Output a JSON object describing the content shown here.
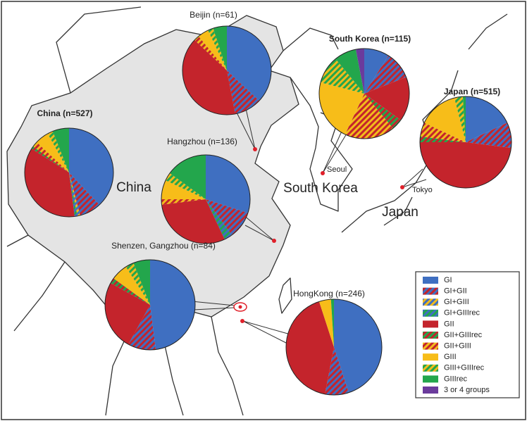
{
  "map": {
    "countries": [
      "China",
      "South Korea",
      "Japan"
    ],
    "cities": [
      "Seoul",
      "Tokyo"
    ]
  },
  "legend": {
    "categories": [
      "GI",
      "GI+GII",
      "GI+GIII",
      "GI+GIIIrec",
      "GII",
      "GII+GIIIrec",
      "GII+GIII",
      "GIII",
      "GIII+GIIIrec",
      "GIIIrec",
      "3 or 4 groups"
    ],
    "colors": [
      "#3f6fc1",
      [
        "#3f6fc1",
        "#c4242c"
      ],
      [
        "#3f6fc1",
        "#f2bb1c"
      ],
      [
        "#3f6fc1",
        "#23a64c"
      ],
      "#c4242c",
      [
        "#c4242c",
        "#23a64c"
      ],
      [
        "#c4242c",
        "#f2bb1c"
      ],
      "#f7bd19",
      [
        "#f2bb1c",
        "#23a64c"
      ],
      "#23a64c",
      "#6b3b9c"
    ]
  },
  "chart_data": [
    {
      "type": "pie",
      "title": "Beijin (n=61)",
      "values": [
        37,
        10,
        0,
        0,
        40,
        0,
        2,
        4,
        2,
        5,
        0
      ]
    },
    {
      "type": "pie",
      "title": "South Korea (n=115)",
      "values": [
        9,
        10,
        0,
        0,
        16,
        4,
        18,
        22,
        10,
        8,
        3
      ]
    },
    {
      "type": "pie",
      "title": "Japan  (n=515)",
      "values": [
        18,
        9,
        0,
        0,
        48,
        2,
        5,
        14,
        3,
        1,
        0
      ]
    },
    {
      "type": "pie",
      "title": "China (n=527)",
      "values": [
        38,
        8,
        1,
        1,
        36,
        1,
        2,
        5,
        2,
        6,
        0
      ]
    },
    {
      "type": "pie",
      "title": "Hangzhou (n=136)",
      "values": [
        30,
        10,
        0,
        3,
        30,
        0,
        2,
        7,
        3,
        15,
        0
      ]
    },
    {
      "type": "pie",
      "title": "Shenzen, Gangzhou (n=84)",
      "values": [
        48,
        10,
        0,
        0,
        25,
        2,
        0,
        6,
        3,
        6,
        0
      ]
    },
    {
      "type": "pie",
      "title": "HongKong (n=246)",
      "values": [
        45,
        8,
        0,
        0,
        42,
        0,
        0,
        4,
        0,
        1,
        0
      ]
    }
  ]
}
